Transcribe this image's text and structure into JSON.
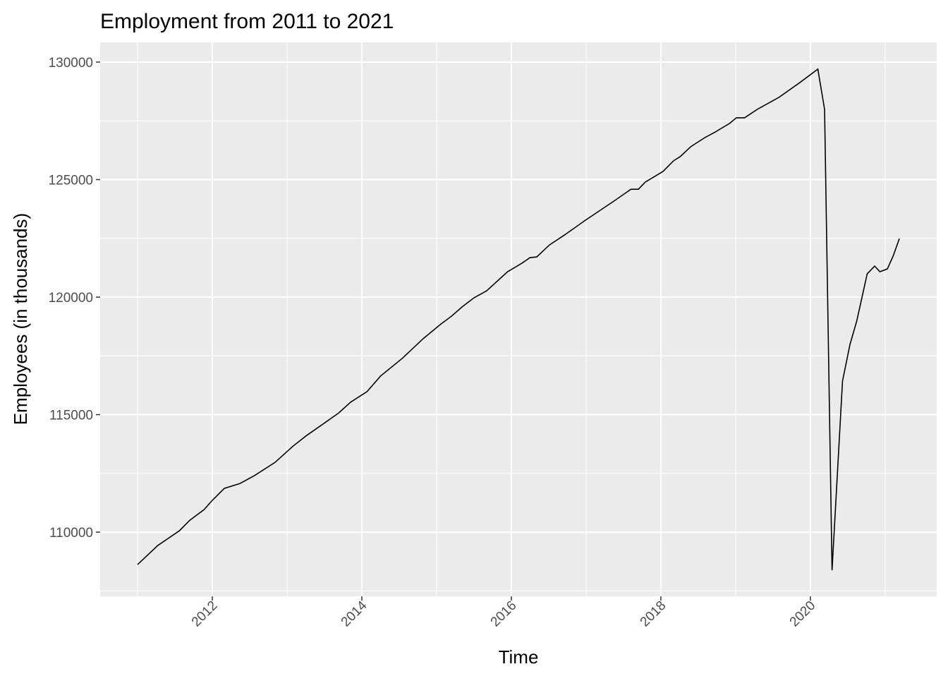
{
  "chart_data": {
    "type": "line",
    "title": "Employment from 2011 to 2021",
    "x_label": "Time",
    "y_label": "Employees (in thousands)",
    "x": [
      2011.0,
      2011.27,
      2011.56,
      2011.7,
      2011.89,
      2011.99,
      2012.16,
      2012.37,
      2012.56,
      2012.84,
      2013.08,
      2013.26,
      2013.45,
      2013.69,
      2013.85,
      2014.07,
      2014.25,
      2014.54,
      2014.82,
      2015.06,
      2015.2,
      2015.34,
      2015.5,
      2015.67,
      2015.95,
      2016.14,
      2016.25,
      2016.34,
      2016.51,
      2016.71,
      2016.99,
      2017.37,
      2017.6,
      2017.7,
      2017.79,
      2018.03,
      2018.17,
      2018.26,
      2018.4,
      2018.59,
      2018.73,
      2018.92,
      2019.01,
      2019.12,
      2019.29,
      2019.58,
      2019.86,
      2020.1,
      2020.19,
      2020.29,
      2020.43,
      2020.53,
      2020.62,
      2020.76,
      2020.86,
      2020.93,
      2021.03,
      2021.11,
      2021.19
    ],
    "series": [
      {
        "color": "#000000",
        "values": [
          108620,
          109430,
          110060,
          110510,
          110960,
          111320,
          111860,
          112070,
          112400,
          112970,
          113660,
          114110,
          114530,
          115070,
          115530,
          115980,
          116640,
          117390,
          118230,
          118860,
          119190,
          119580,
          119970,
          120270,
          121080,
          121440,
          121680,
          121710,
          122220,
          122640,
          123270,
          124080,
          124590,
          124590,
          124890,
          125350,
          125800,
          125980,
          126400,
          126790,
          127030,
          127390,
          127630,
          127630,
          127990,
          128500,
          129130,
          129700,
          127990,
          108380,
          116430,
          117990,
          118980,
          120990,
          121320,
          121080,
          121200,
          121770,
          122490
        ]
      }
    ],
    "xlim": [
      2010.5,
      2021.69
    ],
    "xticks": [
      2012,
      2014,
      2016,
      2018,
      2020
    ],
    "ylim": [
      107270,
      130840
    ],
    "yticks": [
      110000,
      115000,
      120000,
      125000,
      130000
    ],
    "grid": true
  }
}
